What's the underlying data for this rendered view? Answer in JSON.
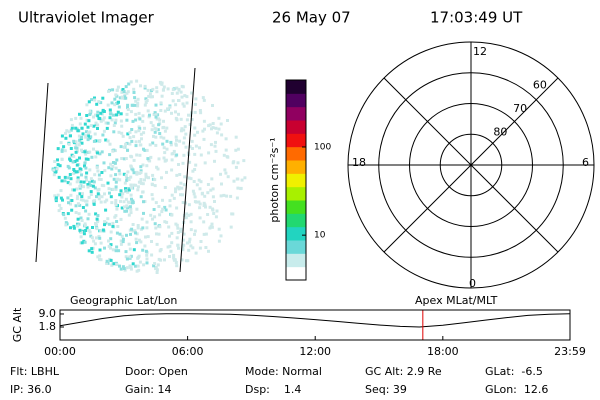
{
  "header": {
    "title": "Ultraviolet Imager",
    "date": "26 May 07",
    "time": "17:03:49 UT"
  },
  "colorbar": {
    "label": "photon cm⁻²s⁻¹",
    "log": true,
    "ylim": [
      3.1,
      575
    ],
    "yticks": [
      10,
      100
    ],
    "colors": [
      "#ffffff",
      "#c8ecec",
      "#6ad8d8",
      "#22d4c0",
      "#22d870",
      "#44e020",
      "#a8f000",
      "#f0f000",
      "#ffb000",
      "#ff6a00",
      "#f01010",
      "#c80030",
      "#900060",
      "#500060",
      "#200030"
    ]
  },
  "polar": {
    "mlt_labels": {
      "top": "12",
      "left": "18",
      "right": "6",
      "bottom": "0"
    },
    "lat_lim": [
      90,
      50
    ],
    "lat_rings": [
      60,
      70,
      80
    ]
  },
  "altitude": {
    "ylabel": "GC Alt",
    "left_label": "Geographic Lat/Lon",
    "right_label": "Apex MLat/MLT",
    "xlim": [
      0,
      23.98
    ],
    "ylim": [
      -5.4,
      11.2
    ],
    "yticks": [
      {
        "value": 1.8,
        "label": "1.8"
      },
      {
        "value": 9.0,
        "label": "9.0"
      }
    ],
    "xticks": [
      {
        "value": 0,
        "label": "00:00"
      },
      {
        "value": 6,
        "label": "06:00"
      },
      {
        "value": 12,
        "label": "12:00"
      },
      {
        "value": 18,
        "label": "18:00"
      },
      {
        "value": 23.98,
        "label": "23:59"
      }
    ],
    "x": [
      0,
      1,
      2,
      3,
      4,
      5,
      6,
      7,
      8,
      9,
      10,
      11,
      12,
      13,
      14,
      15,
      16,
      16.9,
      18,
      19,
      20,
      21,
      22,
      23,
      23.98
    ],
    "values": [
      2.5,
      4.5,
      6.5,
      8,
      8.9,
      9.1,
      9.1,
      9.0,
      8.8,
      8.3,
      7.6,
      6.8,
      5.9,
      4.9,
      3.9,
      2.9,
      2.1,
      1.8,
      2.8,
      4.2,
      5.6,
      7,
      8.2,
      8.9,
      9.1
    ],
    "color": "#000000",
    "marker": 17.06,
    "marker_color": "#e00000"
  },
  "footer": [
    [
      "Flt: LBHL",
      "Door: Open",
      "Mode: Normal",
      "GC Alt: 2.9 Re",
      "GLat:  -6.5"
    ],
    [
      "IP: 36.0",
      "Gain: 14",
      "Dsp:    1.4",
      "Seq: 39",
      "GLon:  12.6"
    ]
  ]
}
